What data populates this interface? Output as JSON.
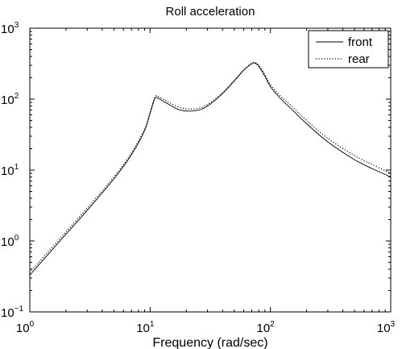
{
  "chart_data": {
    "type": "line",
    "title": "Roll acceleration",
    "xlabel": "Frequency (rad/sec)",
    "ylabel": "",
    "x_scale": "log",
    "y_scale": "log",
    "xlim": [
      1,
      1000
    ],
    "ylim": [
      0.1,
      1000
    ],
    "x_ticks": [
      {
        "value": 1,
        "base": "10",
        "exp": "0"
      },
      {
        "value": 10,
        "base": "10",
        "exp": "1"
      },
      {
        "value": 100,
        "base": "10",
        "exp": "2"
      },
      {
        "value": 1000,
        "base": "10",
        "exp": "3"
      }
    ],
    "y_ticks": [
      {
        "value": 0.1,
        "base": "10",
        "exp": "−1"
      },
      {
        "value": 1,
        "base": "10",
        "exp": "0"
      },
      {
        "value": 10,
        "base": "10",
        "exp": "1"
      },
      {
        "value": 100,
        "base": "10",
        "exp": "2"
      },
      {
        "value": 1000,
        "base": "10",
        "exp": "3"
      }
    ],
    "grid": false,
    "legend_position": "top-right",
    "series": [
      {
        "name": "front",
        "style": "solid",
        "color": "#000000",
        "x": [
          1,
          1.5,
          2,
          3,
          5,
          7,
          9,
          10,
          11,
          12,
          14,
          17,
          20,
          25,
          30,
          40,
          50,
          60,
          70,
          75,
          80,
          90,
          100,
          120,
          150,
          200,
          300,
          500,
          700,
          1000
        ],
        "y": [
          0.33,
          0.72,
          1.25,
          2.7,
          7.5,
          16.5,
          36,
          63,
          103,
          100,
          86,
          72,
          68,
          70,
          80,
          120,
          180,
          255,
          315,
          320,
          290,
          210,
          150,
          104,
          72,
          45,
          25,
          14,
          10.5,
          8
        ]
      },
      {
        "name": "rear",
        "style": "dotted",
        "color": "#000000",
        "x": [
          1,
          1.5,
          2,
          3,
          5,
          7,
          9,
          10,
          11,
          12,
          14,
          17,
          20,
          25,
          30,
          40,
          50,
          60,
          70,
          75,
          80,
          90,
          100,
          120,
          150,
          200,
          300,
          500,
          700,
          1000
        ],
        "y": [
          0.36,
          0.78,
          1.35,
          2.9,
          8,
          17.5,
          38,
          66,
          108,
          106,
          92,
          78,
          73,
          74,
          84,
          123,
          184,
          258,
          322,
          328,
          300,
          222,
          160,
          112,
          80,
          50,
          28,
          16,
          12,
          9
        ]
      }
    ]
  }
}
